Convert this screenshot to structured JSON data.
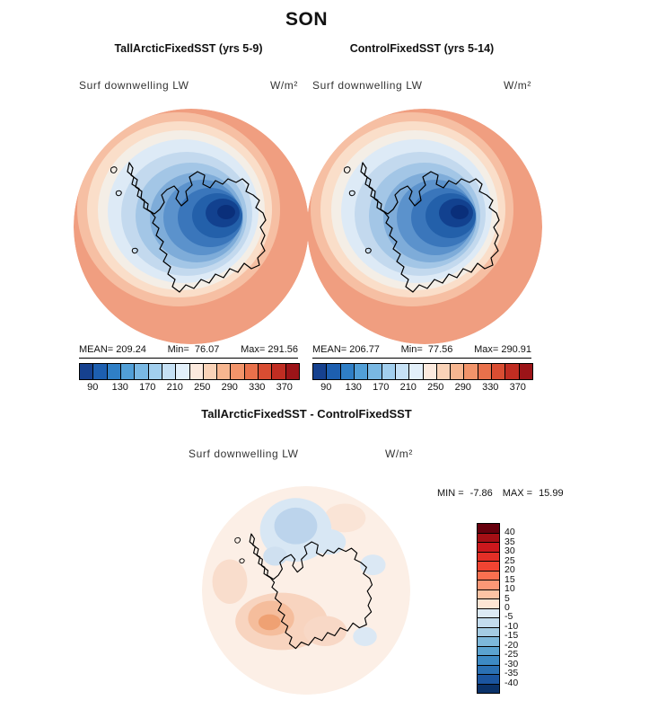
{
  "page_title": "SON",
  "panels": {
    "left": {
      "title": "TallArcticFixedSST (yrs 5-9)",
      "field": "Surf downwelling LW",
      "units": "W/m²",
      "mean_label": "MEAN=",
      "mean": "209.24",
      "min_label": "Min=",
      "min": "76.07",
      "max_label": "Max=",
      "max": "291.56",
      "ticks": [
        "90",
        "130",
        "170",
        "210",
        "250",
        "290",
        "330",
        "370"
      ],
      "palette": [
        "#16418f",
        "#1d5fb0",
        "#2f7fc6",
        "#519fd7",
        "#79b8e3",
        "#a2cfee",
        "#c6e1f5",
        "#e3f0fa",
        "#fceade",
        "#fad3b8",
        "#f7b690",
        "#f2946a",
        "#e9714b",
        "#d94d32",
        "#c02d22",
        "#9c1418"
      ]
    },
    "right": {
      "title": "ControlFixedSST (yrs 5-14)",
      "field": "Surf downwelling LW",
      "units": "W/m²",
      "mean_label": "MEAN=",
      "mean": "206.77",
      "min_label": "Min=",
      "min": "77.56",
      "max_label": "Max=",
      "max": "290.91",
      "ticks": [
        "90",
        "130",
        "170",
        "210",
        "250",
        "290",
        "330",
        "370"
      ],
      "palette": [
        "#16418f",
        "#1d5fb0",
        "#2f7fc6",
        "#519fd7",
        "#79b8e3",
        "#a2cfee",
        "#c6e1f5",
        "#e3f0fa",
        "#fceade",
        "#fad3b8",
        "#f7b690",
        "#f2946a",
        "#e9714b",
        "#d94d32",
        "#c02d22",
        "#9c1418"
      ]
    }
  },
  "diff": {
    "title": "TallArcticFixedSST - ControlFixedSST",
    "field": "Surf downwelling LW",
    "units": "W/m²",
    "min_label": "MIN =",
    "min_value": "-7.86",
    "max_label": "MAX =",
    "max_value": "15.99",
    "ticks": [
      "40",
      "35",
      "30",
      "25",
      "20",
      "15",
      "10",
      "5",
      "0",
      "-5",
      "-10",
      "-15",
      "-20",
      "-25",
      "-30",
      "-35",
      "-40"
    ],
    "palette": [
      "#67000d",
      "#a50f15",
      "#cb181d",
      "#e32f27",
      "#f14432",
      "#fb7050",
      "#fc9776",
      "#fdc3a4",
      "#fde5d4",
      "#dceaf5",
      "#c3dcee",
      "#a4cce3",
      "#7db8da",
      "#5ba3d0",
      "#3d8ac4",
      "#2a70b3",
      "#1b559f",
      "#0a3269"
    ]
  },
  "chart_data": [
    {
      "type": "heatmap",
      "projection": "south_polar_stereographic",
      "season": "SON",
      "title": "TallArcticFixedSST (yrs 5-9)",
      "variable": "Surf downwelling LW",
      "units": "W/m²",
      "stats": {
        "mean": 209.24,
        "min": 76.07,
        "max": 291.56
      },
      "colorbar": {
        "min": 70,
        "max": 390,
        "interval": 20,
        "ticks": [
          90,
          130,
          170,
          210,
          250,
          290,
          330,
          370
        ],
        "scheme": "blue-to-red diverging"
      },
      "pattern": "Low values (~80-170 W/m², dark blue) over the Antarctic continent interior, increasing outward through light blues near the coast to high values (~250-290 W/m², salmon/orange) over the surrounding Southern Ocean; black Antarctic coastline drawn."
    },
    {
      "type": "heatmap",
      "projection": "south_polar_stereographic",
      "season": "SON",
      "title": "ControlFixedSST (yrs 5-14)",
      "variable": "Surf downwelling LW",
      "units": "W/m²",
      "stats": {
        "mean": 206.77,
        "min": 77.56,
        "max": 290.91
      },
      "colorbar": {
        "min": 70,
        "max": 390,
        "interval": 20,
        "ticks": [
          90,
          130,
          170,
          210,
          250,
          290,
          330,
          370
        ],
        "scheme": "blue-to-red diverging"
      },
      "pattern": "Nearly identical spatial pattern to the TallArcticFixedSST panel: minimum over East Antarctic plateau, maximum over open ocean."
    },
    {
      "type": "heatmap",
      "projection": "south_polar_stereographic",
      "season": "SON",
      "title": "TallArcticFixedSST - ControlFixedSST",
      "variable": "Surf downwelling LW",
      "units": "W/m²",
      "stats": {
        "min": -7.86,
        "max": 15.99
      },
      "colorbar": {
        "min": -45,
        "max": 45,
        "interval": 5,
        "ticks": [
          40,
          35,
          30,
          25,
          20,
          15,
          10,
          5,
          0,
          -5,
          -10,
          -15,
          -20,
          -25,
          -30,
          -35,
          -40
        ],
        "scheme": "blue-to-red diverging"
      },
      "pattern": "Mostly near-zero (pale) differences; weak positive (light red/orange, up to ~16 W/m²) anomalies over West Antarctica and the lower sector, weak negative (light blue, down to ~-8 W/m²) anomalies north of the continent near the top of the map."
    }
  ]
}
